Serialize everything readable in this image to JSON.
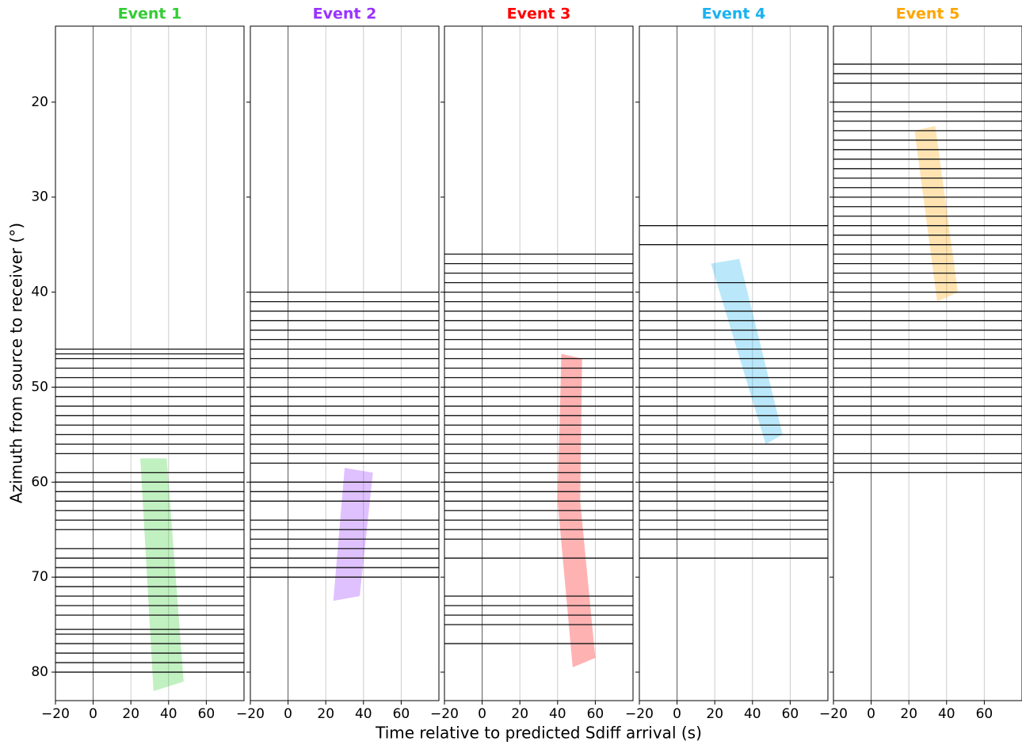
{
  "chart_data": {
    "type": "record_section",
    "xlabel": "Time relative to predicted Sdiff arrival (s)",
    "ylabel": "Azimuth from source to receiver (°)",
    "xlim": [
      -20,
      80
    ],
    "ylim": [
      12,
      83
    ],
    "y_inverted": true,
    "xticks": [
      {
        "value": -20,
        "label": "−20"
      },
      0,
      20,
      40,
      60
    ],
    "yticks": [
      20,
      30,
      40,
      50,
      60,
      70,
      80
    ],
    "grid": true,
    "events": [
      {
        "title": "Event 1",
        "color": "#33cc33",
        "traces": [
          46,
          46.5,
          47,
          48,
          49,
          50,
          51,
          52,
          53,
          54,
          55,
          56,
          57,
          59,
          60,
          61,
          62,
          63,
          64,
          65,
          67,
          68,
          69,
          70,
          71,
          72,
          73,
          74,
          75.5,
          76,
          77,
          78,
          79,
          80
        ],
        "band_time": [
          25,
          39,
          48,
          32
        ],
        "band_azimuth": [
          57.5,
          57.5,
          81,
          82
        ]
      },
      {
        "title": "Event 2",
        "color": "#9933ff",
        "traces": [
          40,
          41,
          42,
          43,
          44,
          45,
          46,
          47,
          48,
          49,
          50,
          51,
          52,
          53,
          54,
          55,
          56,
          57,
          58,
          60,
          61,
          62,
          64,
          65,
          66,
          67,
          68,
          69,
          70
        ],
        "band_time": [
          30,
          45,
          38,
          24
        ],
        "band_azimuth": [
          58.5,
          59,
          72,
          72.5
        ]
      },
      {
        "title": "Event 3",
        "color": "#ff0000",
        "traces": [
          36,
          37,
          38,
          39,
          40,
          41,
          42,
          43,
          44,
          45,
          46,
          47,
          48,
          49,
          50,
          51,
          52,
          53,
          54,
          55,
          56,
          57,
          58,
          59,
          60,
          61,
          62,
          63,
          64,
          65,
          66,
          68,
          72,
          73,
          74,
          75,
          77
        ],
        "band_time": [
          42,
          53,
          52,
          60,
          48,
          40
        ],
        "band_azimuth": [
          46.5,
          47,
          62,
          78.5,
          79.5,
          62
        ]
      },
      {
        "title": "Event 4",
        "color": "#1ab2f0",
        "traces": [
          33,
          35,
          39,
          41,
          42,
          43,
          44,
          45,
          46,
          47,
          48,
          49,
          50,
          51,
          52,
          53,
          54,
          55,
          56,
          57,
          58,
          59,
          60,
          61,
          62,
          63,
          64,
          65,
          66,
          68
        ],
        "band_time": [
          18,
          33,
          56,
          47
        ],
        "band_azimuth": [
          37,
          36.5,
          55,
          56
        ]
      },
      {
        "title": "Event 5",
        "color": "#ffa500",
        "traces": [
          16,
          17,
          18,
          20,
          21,
          22,
          23,
          24,
          25,
          26,
          27,
          28,
          29,
          30,
          31,
          32,
          33,
          34,
          35,
          36,
          37,
          38,
          39,
          40,
          41,
          42,
          43,
          44,
          45,
          46,
          47,
          48,
          49,
          50,
          51,
          52,
          53,
          54,
          55,
          57,
          58,
          59
        ],
        "band_time": [
          23,
          34,
          46,
          35
        ],
        "band_azimuth": [
          23,
          22.5,
          40,
          41
        ]
      }
    ]
  }
}
